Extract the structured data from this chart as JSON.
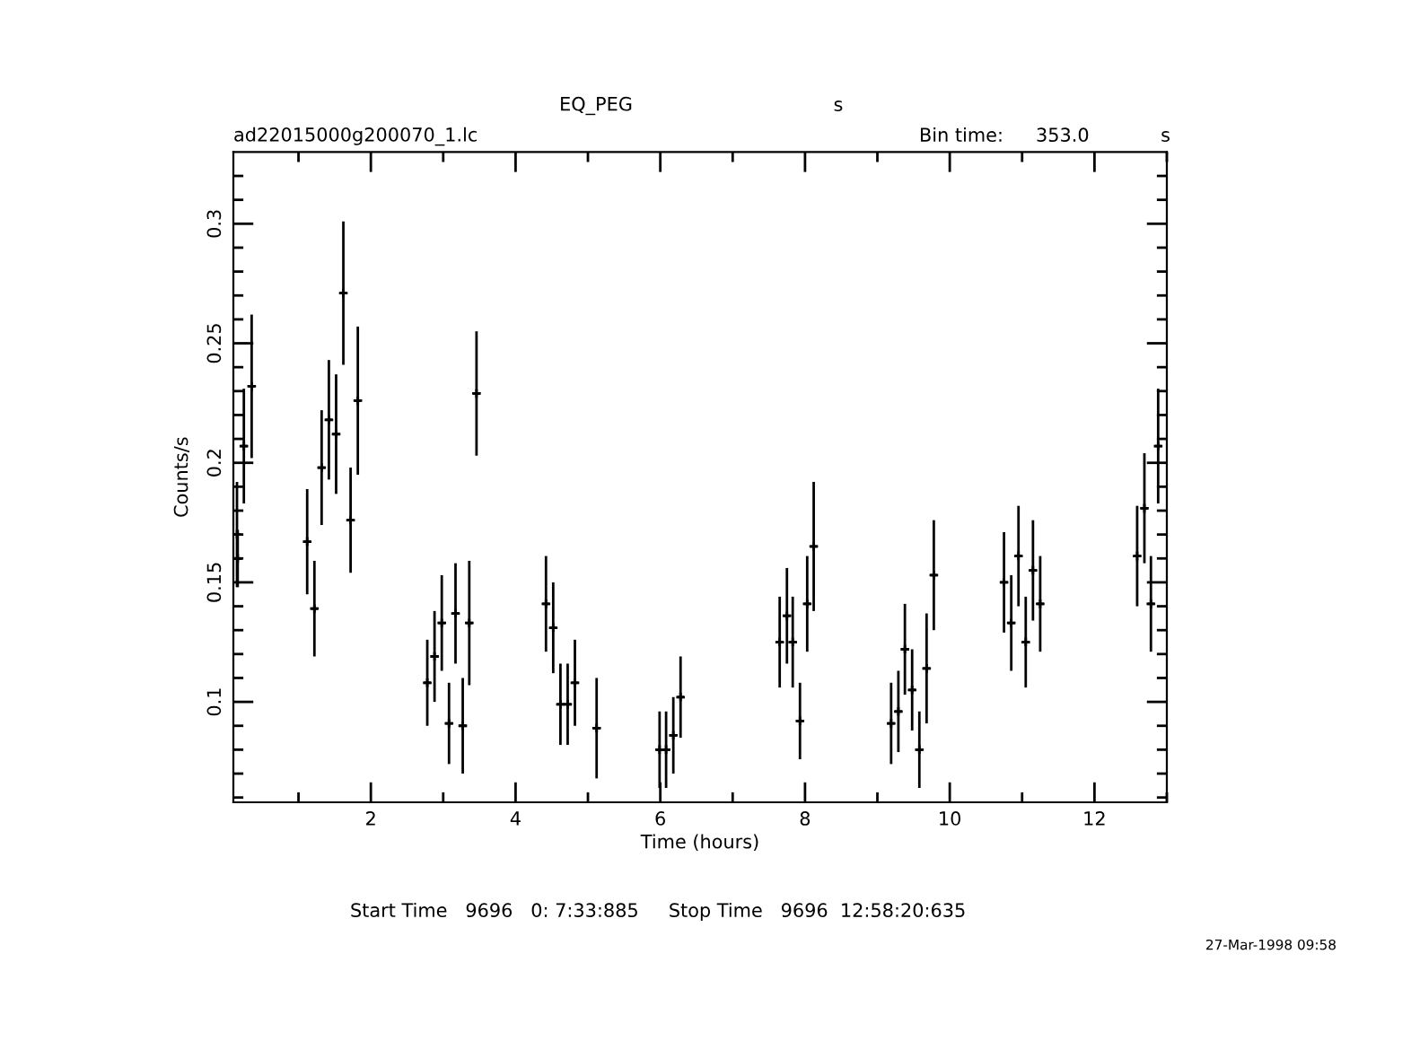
{
  "chart_data": {
    "type": "scatter",
    "title": "EQ_PEG",
    "xlabel": "Time (hours)",
    "ylabel": "Counts/s",
    "annotations": [
      "s",
      "ad22015000g200070_1.lc",
      "Bin time:",
      "353.0",
      "s",
      "Start Time   9696   0: 7:33:885     Stop Time   9696  12:58:20:635",
      "27-Mar-1998 09:58"
    ],
    "marker": "cross",
    "grid": false,
    "legend": false,
    "xlim": [
      0.1,
      13.0
    ],
    "ylim": [
      0.058,
      0.33
    ],
    "xticks": [
      {
        "value": 1,
        "label": null
      },
      2,
      {
        "value": 3,
        "label": null
      },
      4,
      {
        "value": 5,
        "label": null
      },
      6,
      {
        "value": 7,
        "label": null
      },
      8,
      {
        "value": 9,
        "label": null
      },
      10,
      {
        "value": 11,
        "label": null
      },
      12,
      {
        "value": 13,
        "label": null
      }
    ],
    "yticks": [
      {
        "value": 0.06,
        "label": null
      },
      {
        "value": 0.07,
        "label": null
      },
      {
        "value": 0.08,
        "label": null
      },
      {
        "value": 0.09,
        "label": null
      },
      0.1,
      {
        "value": 0.11,
        "label": null
      },
      {
        "value": 0.12,
        "label": null
      },
      {
        "value": 0.13,
        "label": null
      },
      {
        "value": 0.14,
        "label": null
      },
      0.15,
      {
        "value": 0.16,
        "label": null
      },
      {
        "value": 0.17,
        "label": null
      },
      {
        "value": 0.18,
        "label": null
      },
      {
        "value": 0.19,
        "label": null
      },
      0.2,
      {
        "value": 0.21,
        "label": null
      },
      {
        "value": 0.22,
        "label": null
      },
      {
        "value": 0.23,
        "label": null
      },
      {
        "value": 0.24,
        "label": null
      },
      0.25,
      {
        "value": 0.26,
        "label": null
      },
      {
        "value": 0.27,
        "label": null
      },
      {
        "value": 0.28,
        "label": null
      },
      {
        "value": 0.29,
        "label": null
      },
      0.3,
      {
        "value": 0.31,
        "label": null
      },
      {
        "value": 0.32,
        "label": null
      }
    ],
    "series": [
      {
        "color": "#000000",
        "x": [
          0.15,
          0.16,
          0.245,
          0.353,
          1.12,
          1.22,
          1.32,
          1.42,
          1.52,
          1.62,
          1.72,
          1.82,
          2.78,
          2.88,
          2.98,
          3.08,
          3.17,
          3.27,
          3.36,
          3.46,
          4.42,
          4.52,
          4.62,
          4.72,
          4.82,
          5.12,
          5.99,
          6.08,
          6.18,
          6.28,
          7.65,
          7.75,
          7.83,
          7.93,
          8.03,
          8.12,
          9.19,
          9.29,
          9.38,
          9.48,
          9.58,
          9.68,
          9.78,
          10.75,
          10.85,
          10.95,
          11.05,
          11.15,
          11.25,
          12.59,
          12.69,
          12.78,
          12.88
        ],
        "values": [
          0.17,
          0.16,
          0.207,
          0.232,
          0.167,
          0.139,
          0.198,
          0.218,
          0.212,
          0.271,
          0.176,
          0.226,
          0.108,
          0.119,
          0.133,
          0.091,
          0.137,
          0.09,
          0.133,
          0.229,
          0.141,
          0.131,
          0.099,
          0.099,
          0.108,
          0.089,
          0.08,
          0.08,
          0.086,
          0.102,
          0.125,
          0.136,
          0.125,
          0.092,
          0.141,
          0.165,
          0.091,
          0.096,
          0.122,
          0.105,
          0.08,
          0.114,
          0.153,
          0.15,
          0.133,
          0.161,
          0.125,
          0.155,
          0.141,
          0.161,
          0.181,
          0.141,
          0.207
        ],
        "errors": [
          0.022,
          0.012,
          0.024,
          0.03,
          0.022,
          0.02,
          0.024,
          0.025,
          0.025,
          0.03,
          0.022,
          0.031,
          0.018,
          0.019,
          0.02,
          0.017,
          0.021,
          0.02,
          0.026,
          0.026,
          0.02,
          0.019,
          0.017,
          0.017,
          0.018,
          0.021,
          0.016,
          0.016,
          0.016,
          0.017,
          0.019,
          0.02,
          0.019,
          0.016,
          0.02,
          0.027,
          0.017,
          0.017,
          0.019,
          0.017,
          0.016,
          0.023,
          0.023,
          0.021,
          0.02,
          0.021,
          0.019,
          0.021,
          0.02,
          0.021,
          0.023,
          0.02,
          0.024
        ],
        "xerrors": [
          0.049,
          0.049,
          0.049,
          0.049,
          0.049,
          0.049,
          0.049,
          0.049,
          0.049,
          0.049,
          0.049,
          0.049,
          0.049,
          0.049,
          0.049,
          0.049,
          0.049,
          0.049,
          0.049,
          0.049,
          0.049,
          0.049,
          0.049,
          0.049,
          0.049,
          0.049,
          0.049,
          0.049,
          0.049,
          0.049,
          0.049,
          0.049,
          0.049,
          0.049,
          0.049,
          0.049,
          0.049,
          0.049,
          0.049,
          0.049,
          0.049,
          0.049,
          0.049,
          0.049,
          0.049,
          0.049,
          0.049,
          0.049,
          0.049,
          0.049,
          0.049,
          0.049,
          0.049
        ]
      }
    ]
  }
}
